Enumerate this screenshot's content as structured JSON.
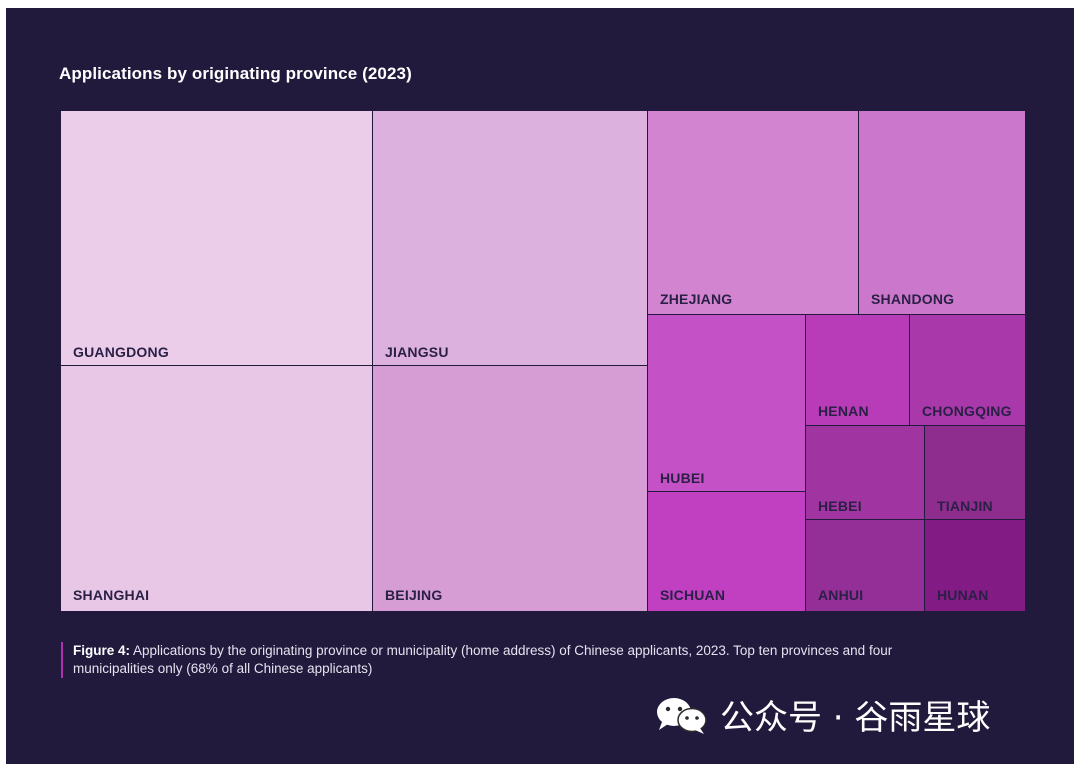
{
  "chart_data": {
    "type": "treemap",
    "title": "Applications by originating province (2023)",
    "items": [
      {
        "name": "GUANGDONG",
        "value": 79800,
        "color": "#ebcdea"
      },
      {
        "name": "SHANGHAI",
        "value": 78500,
        "color": "#e8c6e6"
      },
      {
        "name": "JIANGSU",
        "value": 70300,
        "color": "#ddb1dd"
      },
      {
        "name": "BEIJING",
        "value": 67700,
        "color": "#d59dd4"
      },
      {
        "name": "ZHEJIANG",
        "value": 30900,
        "color": "#d284d1"
      },
      {
        "name": "SHANDONG",
        "value": 24100,
        "color": "#ca77cc"
      },
      {
        "name": "HUBEI",
        "value": 20000,
        "color": "#c551c6"
      },
      {
        "name": "SICHUAN",
        "value": 13500,
        "color": "#c140c2"
      },
      {
        "name": "HENAN",
        "value": 8400,
        "color": "#b83bb8"
      },
      {
        "name": "CHONGQING",
        "value": 8400,
        "color": "#a939aa"
      },
      {
        "name": "HEBEI",
        "value": 8000,
        "color": "#a035a1"
      },
      {
        "name": "TIANJIN",
        "value": 6900,
        "color": "#8e2d8e"
      },
      {
        "name": "ANHUI",
        "value": 7300,
        "color": "#952f98"
      },
      {
        "name": "HUNAN",
        "value": 6300,
        "color": "#821c84"
      }
    ]
  },
  "caption": {
    "label": "Figure 4:",
    "text": " Applications by the originating province or municipality (home address) of Chinese applicants, 2023. Top ten provinces and four municipalities only (68% of all Chinese applicants)"
  },
  "watermark": {
    "text": "公众号 · 谷雨星球",
    "icon": "wechat-icon"
  }
}
